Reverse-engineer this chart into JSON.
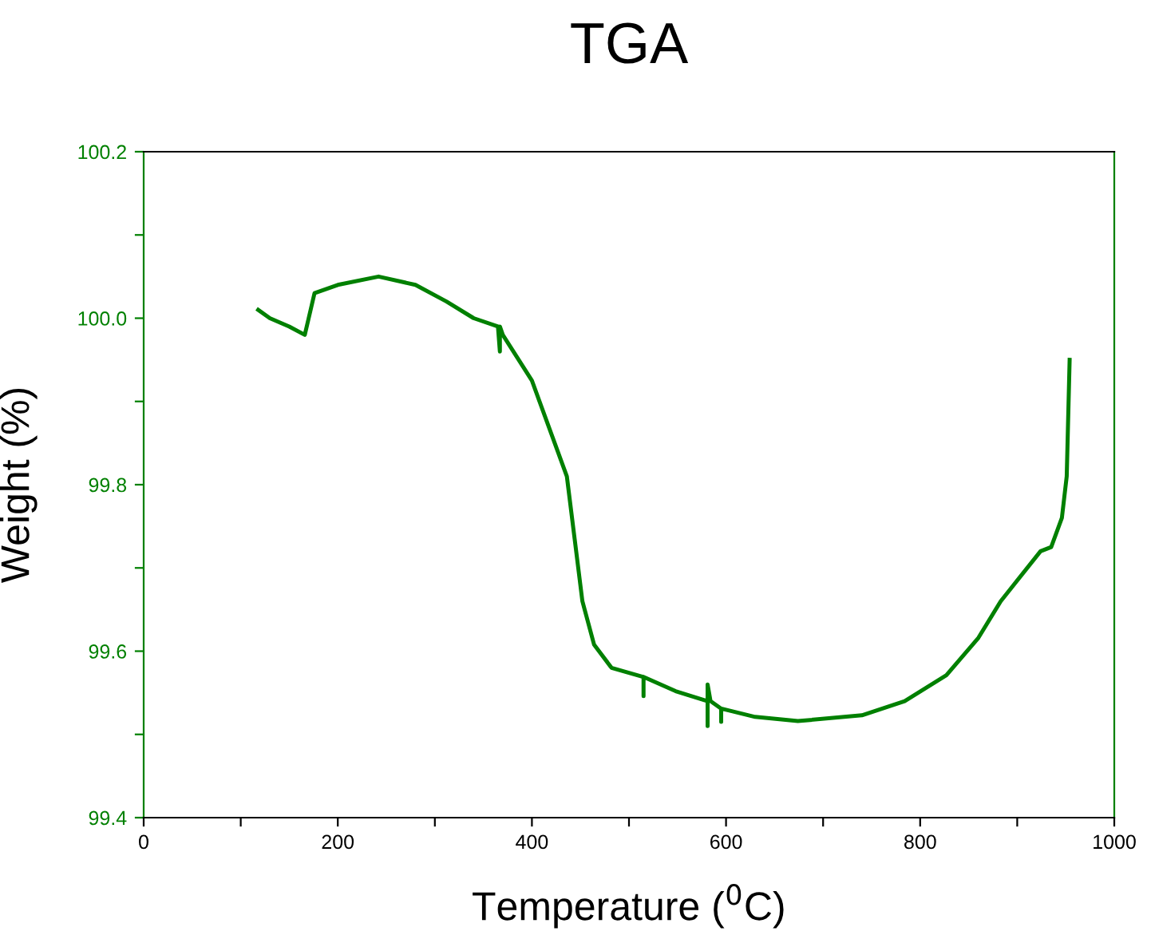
{
  "chart_data": {
    "type": "line",
    "title": "TGA",
    "xlabel": "Temperature ($^{0}$C)",
    "ylabel": "Weight (%)",
    "xlim": [
      0,
      1000
    ],
    "ylim": [
      99.4,
      100.2
    ],
    "xticks": [
      0,
      {
        "value": 100,
        "label": null
      },
      200,
      {
        "value": 300,
        "label": null
      },
      400,
      {
        "value": 500,
        "label": null
      },
      600,
      {
        "value": 700,
        "label": null
      },
      800,
      {
        "value": 900,
        "label": null
      },
      1000
    ],
    "yticks": [
      {
        "value": 99.4,
        "label": "99.4"
      },
      {
        "value": 99.5,
        "label": null
      },
      {
        "value": 99.6,
        "label": "99.6"
      },
      {
        "value": 99.7,
        "label": null
      },
      {
        "value": 99.8,
        "label": "99.8"
      },
      {
        "value": 99.9,
        "label": null
      },
      {
        "value": 100.0,
        "label": "100.0"
      },
      {
        "value": 100.1,
        "label": null
      },
      {
        "value": 100.2,
        "label": "100.2"
      }
    ],
    "grid": false,
    "legend": false,
    "marker": "none",
    "line_style": "solid",
    "series": [
      {
        "color": "#008000",
        "x": [
          118,
          130,
          150,
          166,
          170,
          176,
          200,
          242,
          280,
          312,
          340,
          365,
          367,
          367,
          370,
          400,
          436,
          444,
          452,
          464,
          482,
          515,
          515,
          515,
          548,
          581,
          581,
          581,
          584,
          595,
          595,
          595,
          630,
          674,
          740,
          784,
          827,
          860,
          883,
          924,
          935,
          946,
          951,
          954
        ],
        "values": [
          100.01,
          100.0,
          99.99,
          99.98,
          100.0,
          100.03,
          100.04,
          100.05,
          100.04,
          100.02,
          100.0,
          99.99,
          99.96,
          99.99,
          99.98,
          99.925,
          99.81,
          99.735,
          99.66,
          99.608,
          99.58,
          99.569,
          99.546,
          99.569,
          99.552,
          99.54,
          99.51,
          99.56,
          99.54,
          99.531,
          99.515,
          99.531,
          99.521,
          99.516,
          99.523,
          99.54,
          99.571,
          99.616,
          99.66,
          99.72,
          99.725,
          99.76,
          99.81,
          99.95
        ]
      }
    ]
  }
}
